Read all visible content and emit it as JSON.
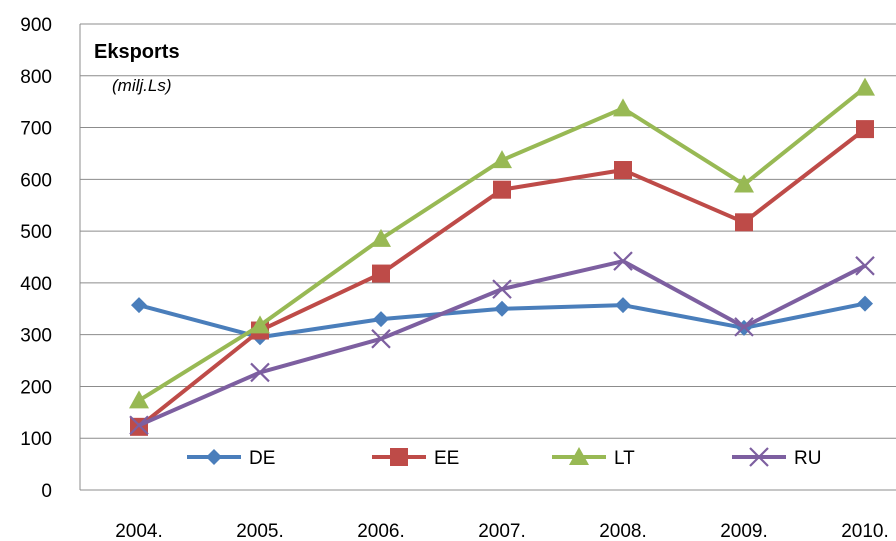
{
  "chart_data": {
    "type": "line",
    "title": "Eksports",
    "subtitle": "(milj.Ls)",
    "categories": [
      "2004.",
      "2005.",
      "2006.",
      "2007.",
      "2008.",
      "2009.",
      "2010."
    ],
    "ylim": [
      0,
      900
    ],
    "yticks": [
      "0",
      "100",
      "200",
      "300",
      "400",
      "500",
      "600",
      "700",
      "800",
      "900"
    ],
    "grid": true,
    "legend_position": "bottom-inside",
    "series": [
      {
        "name": "DE",
        "marker": "diamond",
        "color": "#4a7ebb",
        "values": [
          357,
          295,
          330,
          350,
          357,
          313,
          360
        ]
      },
      {
        "name": "EE",
        "marker": "square",
        "color": "#be4b48",
        "values": [
          122,
          308,
          418,
          580,
          618,
          517,
          697
        ]
      },
      {
        "name": "LT",
        "marker": "triangle",
        "color": "#98b954",
        "values": [
          173,
          318,
          485,
          637,
          737,
          590,
          777
        ]
      },
      {
        "name": "RU",
        "marker": "x",
        "color": "#7d5fa0",
        "values": [
          125,
          227,
          292,
          388,
          442,
          315,
          433
        ]
      }
    ]
  }
}
